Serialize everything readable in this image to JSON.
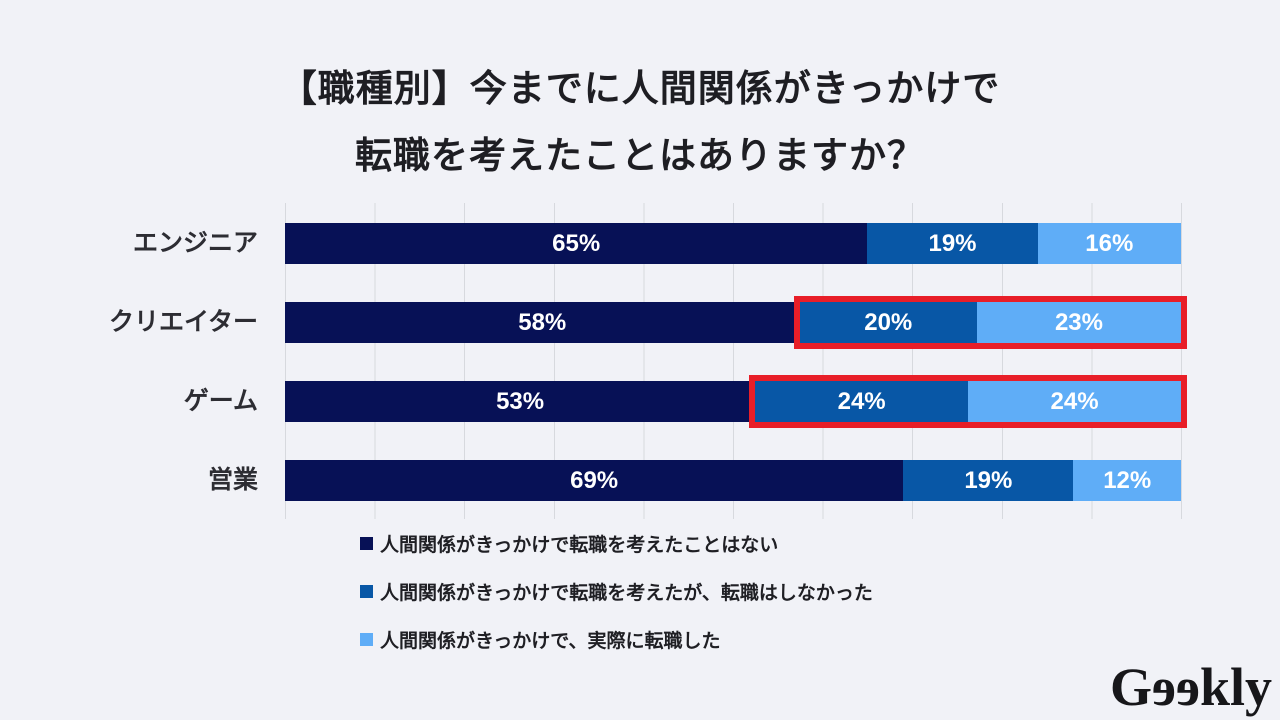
{
  "title": {
    "line1": "【職種別】今までに人間関係がきっかけで",
    "line2": "転職を考えたことはありますか？"
  },
  "chart_data": {
    "type": "bar",
    "orientation": "horizontal",
    "stacked": true,
    "title": "【職種別】今までに人間関係がきっかけで転職を考えたことはありますか？",
    "categories": [
      "エンジニア",
      "クリエイター",
      "ゲーム",
      "営業"
    ],
    "series": [
      {
        "name": "人間関係がきっかけで転職を考えたことはない",
        "color": "#071156",
        "values": [
          65,
          58,
          53,
          69
        ]
      },
      {
        "name": "人間関係がきっかけで転職を考えたが、転職はしなかった",
        "color": "#0857a6",
        "values": [
          19,
          20,
          24,
          19
        ]
      },
      {
        "name": "人間関係がきっかけで、実際に転職した",
        "color": "#5fadf7",
        "values": [
          16,
          23,
          24,
          12
        ]
      }
    ],
    "value_suffix": "%",
    "xlim": [
      0,
      100
    ],
    "gridlines": "vertical every 10%",
    "legend_position": "bottom-left",
    "highlights": [
      false,
      true,
      true,
      false
    ],
    "highlight_segments": [
      1,
      2
    ],
    "highlight_color": "#e81e28",
    "background_color": "#f1f2f7"
  },
  "logo": {
    "g": "G",
    "e": "e",
    "rest": "kly",
    "full": "Geekly"
  }
}
